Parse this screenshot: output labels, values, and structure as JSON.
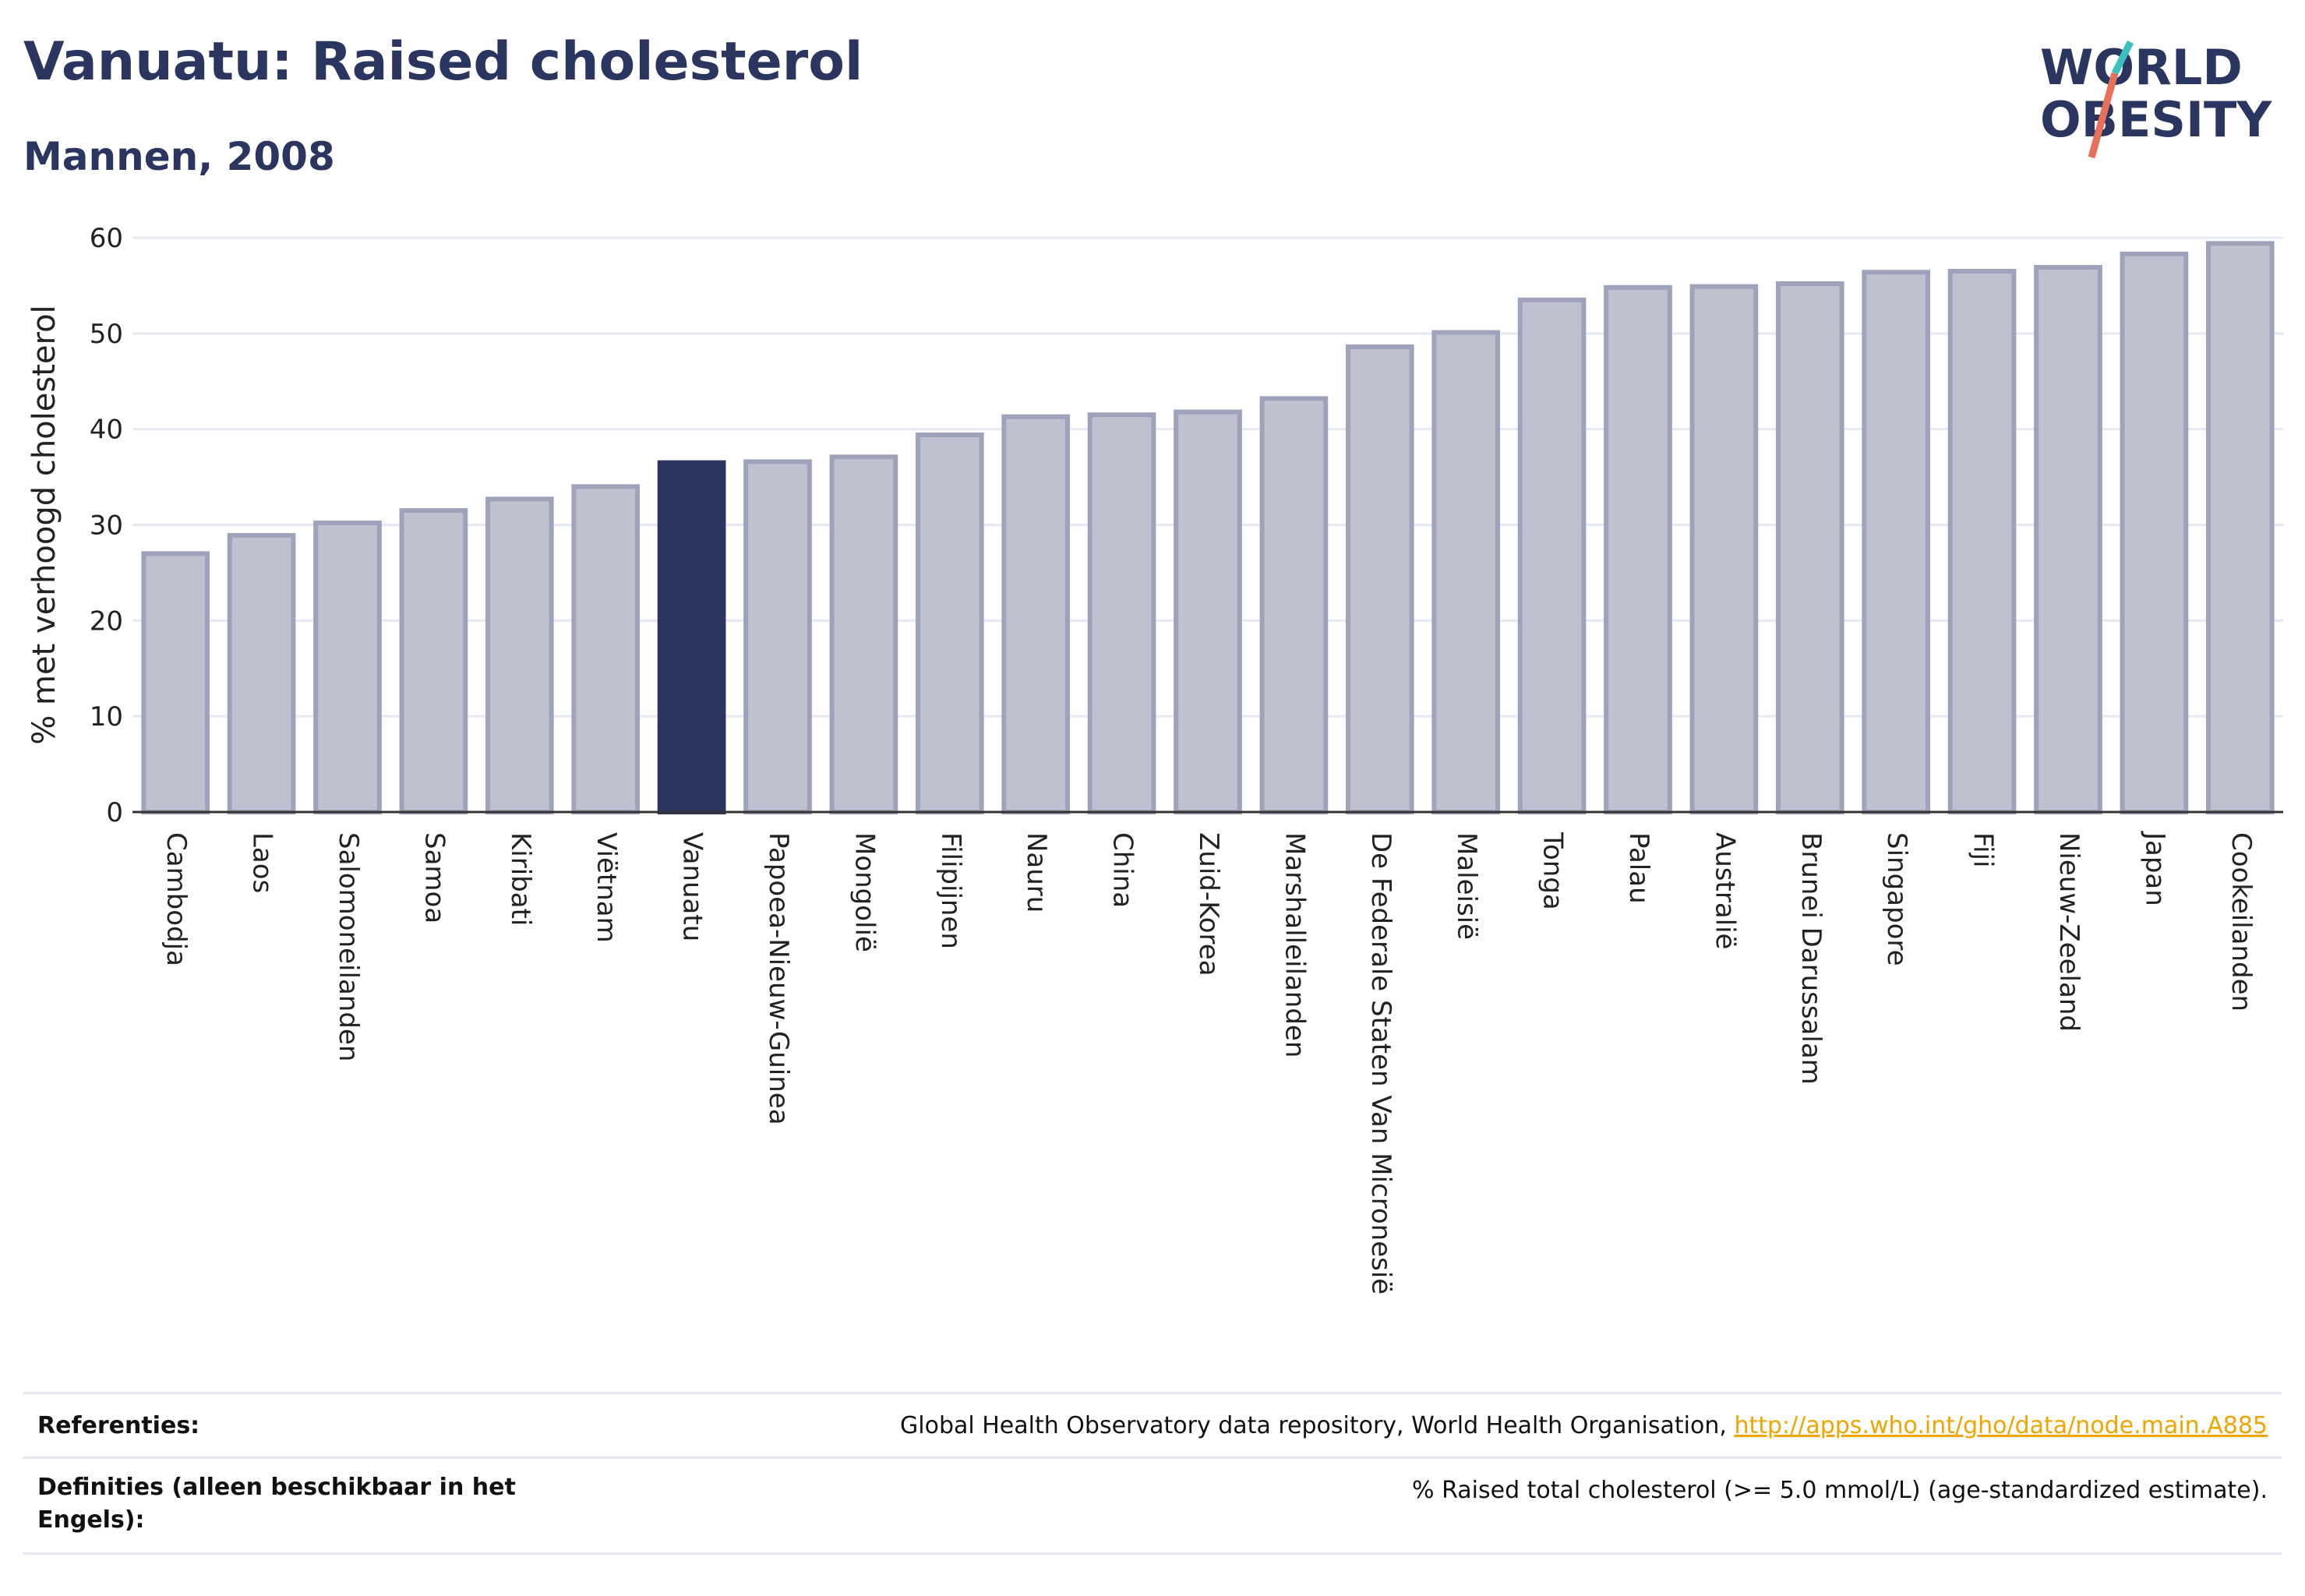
{
  "title": "Vanuatu: Raised cholesterol",
  "subtitle": "Mannen, 2008",
  "logo": {
    "line1": "WORLD",
    "line2": "OBESITY"
  },
  "colors": {
    "highlight": "#2a3560",
    "bar_fill": "#bfc1ce",
    "bar_stroke": "#9ea3bb",
    "text": "#2a3560",
    "link": "#f0a500",
    "grid": "#e6e9f2"
  },
  "chart_data": {
    "type": "bar",
    "ylabel": "% met verhoogd cholesterol",
    "ylim": [
      0,
      60
    ],
    "yticks": [
      0,
      10,
      20,
      30,
      40,
      50,
      60
    ],
    "highlight": "Vanuatu",
    "categories": [
      "Cambodja",
      "Laos",
      "Salomoneilanden",
      "Samoa",
      "Kiribati",
      "Viëtnam",
      "Vanuatu",
      "Papoea-Nieuw-Guinea",
      "Mongolië",
      "Filipijnen",
      "Nauru",
      "China",
      "Zuid-Korea",
      "Marshalleilanden",
      "De Federale Staten Van Micronesië",
      "Maleisië",
      "Tonga",
      "Palau",
      "Australië",
      "Brunei Darussalam",
      "Singapore",
      "Fiji",
      "Nieuw-Zeeland",
      "Japan",
      "Cookeilanden"
    ],
    "values": [
      27.0,
      28.9,
      30.2,
      31.5,
      32.7,
      34.0,
      36.5,
      36.6,
      37.1,
      39.4,
      41.3,
      41.5,
      41.8,
      43.2,
      48.6,
      50.1,
      53.5,
      54.8,
      54.9,
      55.2,
      56.4,
      56.5,
      56.9,
      58.3,
      59.4
    ]
  },
  "footer": {
    "references_label": "Referenties:",
    "references_text": "Global Health Observatory data repository, World Health Organisation, ",
    "references_link": "http://apps.who.int/gho/data/node.main.A885",
    "definitions_label": "Definities (alleen beschikbaar in het Engels):",
    "definitions_text": "% Raised total cholesterol (>= 5.0 mmol/L) (age-standardized estimate)."
  }
}
